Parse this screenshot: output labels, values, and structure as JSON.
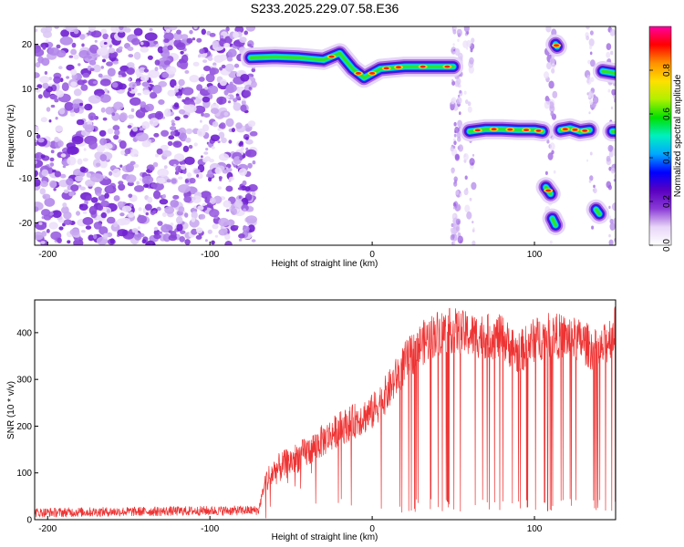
{
  "figure": {
    "title": "S233.2025.229.07.58.E36"
  },
  "chart_data": [
    {
      "type": "heatmap",
      "name": "spectrogram",
      "title": "S233.2025.229.07.58.E36",
      "xlabel": "Height of straight line (km)",
      "ylabel": "Frequency (Hz)",
      "xlim": [
        -208,
        150
      ],
      "ylim": [
        -25,
        24
      ],
      "xticks": [
        -200,
        -100,
        0,
        100
      ],
      "xtick_labels": [
        "-200",
        "-100",
        "0",
        "100"
      ],
      "yticks": [
        20,
        10,
        0,
        -10,
        -20
      ],
      "ytick_labels": [
        "20",
        "10",
        "0",
        "-10",
        "-20"
      ],
      "colorbar": {
        "label": "Normalized spectral amplitude",
        "range": [
          0,
          1
        ],
        "ticks": [
          0.0,
          0.2,
          0.4,
          0.6,
          0.8
        ],
        "tick_labels": [
          "0.0",
          "0.2",
          "0.4",
          "0.6",
          "0.8"
        ],
        "colormap": [
          "#ffffff",
          "#e8d6f7",
          "#8a3bd6",
          "#5a00c0",
          "#0000ff",
          "#00a8ff",
          "#00f0c0",
          "#00e000",
          "#b0f000",
          "#ffe000",
          "#ff9000",
          "#ff0000",
          "#ff00a0"
        ]
      },
      "noise_region_km": [
        -208,
        -75
      ],
      "tracks": [
        {
          "x": [
            -75,
            -60,
            -45,
            -30,
            -20,
            -12,
            -5,
            5,
            20,
            35,
            50
          ],
          "freq": [
            17,
            17.2,
            17,
            16.5,
            18,
            14.5,
            12.5,
            14.5,
            15,
            15,
            15
          ]
        },
        {
          "x": [
            60,
            70,
            80,
            90,
            100,
            105
          ],
          "freq": [
            0.5,
            1,
            1,
            0.8,
            0.8,
            0.5
          ]
        },
        {
          "x": [
            116,
            122,
            128,
            134
          ],
          "freq": [
            0.8,
            1.2,
            0.5,
            0.8
          ]
        },
        {
          "x": [
            107,
            110
          ],
          "freq": [
            -12,
            -13.5
          ]
        },
        {
          "x": [
            113,
            114
          ],
          "freq": [
            20,
            19.5
          ]
        },
        {
          "x": [
            111,
            113
          ],
          "freq": [
            -19,
            -20.5
          ]
        },
        {
          "x": [
            138,
            140
          ],
          "freq": [
            -17,
            -18
          ]
        },
        {
          "x": [
            142,
            150
          ],
          "freq": [
            14,
            13.5
          ]
        },
        {
          "x": [
            148,
            150
          ],
          "freq": [
            0.5,
            0.5
          ]
        }
      ]
    },
    {
      "type": "line",
      "name": "snr",
      "xlabel": "Height of straight line (km)",
      "ylabel": "SNR (10 * v/v)",
      "xlim": [
        -208,
        150
      ],
      "ylim": [
        0,
        470
      ],
      "xticks": [
        -200,
        -100,
        0,
        100
      ],
      "xtick_labels": [
        "-200",
        "-100",
        "0",
        "100"
      ],
      "yticks": [
        0,
        100,
        200,
        300,
        400
      ],
      "ytick_labels": [
        "0",
        "100",
        "200",
        "300",
        "400"
      ],
      "series": [
        {
          "name": "SNR",
          "color": "#ee3333",
          "envelope": {
            "x": [
              -208,
              -130,
              -70,
              -66,
              -60,
              -40,
              -20,
              0,
              10,
              20,
              30,
              40,
              50,
              60,
              80,
              90,
              100,
              110,
              120,
              130,
              140,
              150
            ],
            "y": [
              15,
              18,
              20,
              80,
              105,
              145,
              195,
              230,
              275,
              335,
              375,
              400,
              405,
              395,
              390,
              355,
              385,
              395,
              390,
              380,
              355,
              410
            ]
          },
          "noise_amplitude": 25,
          "dropout_floor": 15
        }
      ]
    }
  ]
}
